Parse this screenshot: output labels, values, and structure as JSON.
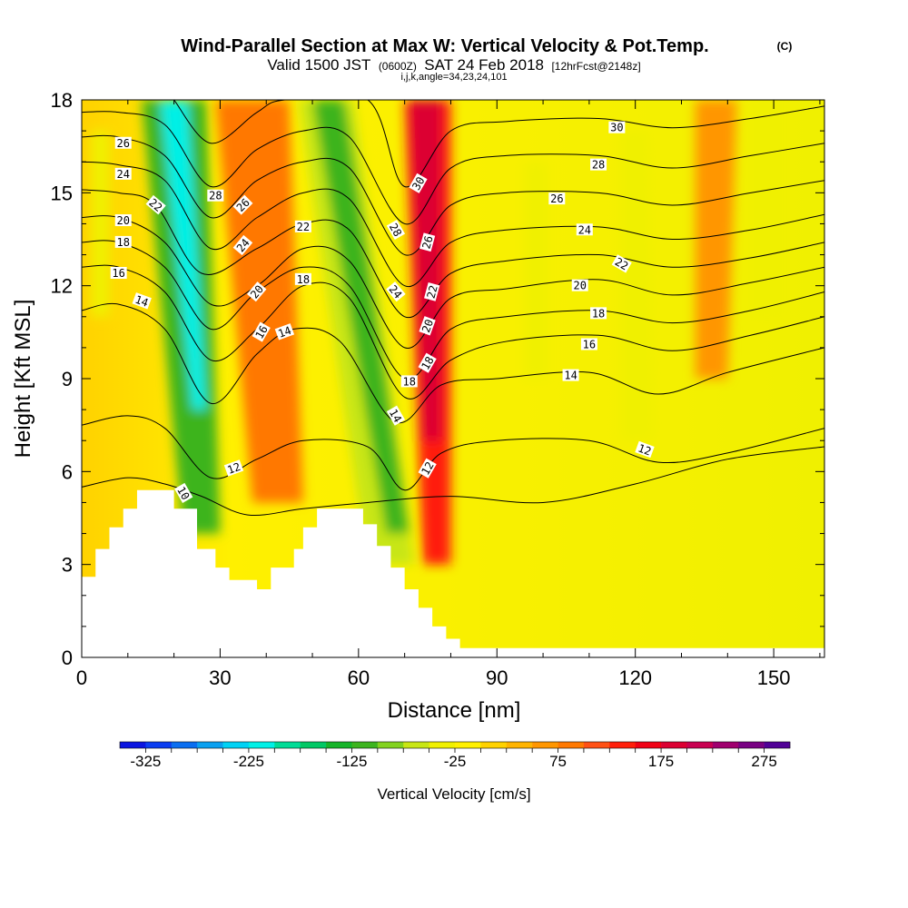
{
  "chart_data": {
    "type": "heatmap",
    "title": "Wind-Parallel Section at Max W: Vertical Velocity & Pot.Temp.",
    "title_mark": "(C)",
    "subtitle_parts": [
      "Valid 1500 JST",
      "(0600Z)",
      "SAT 24 Feb 2018",
      "[12hrFcst@2148z]"
    ],
    "subsubtitle": "i,j,k,angle=34,23,24,101",
    "xlabel": "Distance [nm]",
    "ylabel": "Height [Kft MSL]",
    "xlim": [
      0,
      161
    ],
    "ylim": [
      0,
      18
    ],
    "x_ticks": [
      "0",
      "30",
      "60",
      "90",
      "120",
      "150"
    ],
    "y_ticks": [
      "0",
      "3",
      "6",
      "9",
      "12",
      "15",
      "18"
    ],
    "colorbar": {
      "label": "Vertical Velocity [cm/s]",
      "ticks": [
        "-325",
        "-225",
        "-125",
        "-25",
        "75",
        "175",
        "275"
      ],
      "colors": [
        "#0a14e0",
        "#0a3cf0",
        "#0a6ef0",
        "#0aa0f0",
        "#00d2f5",
        "#00f0e6",
        "#00dc96",
        "#00c864",
        "#14b428",
        "#3cb41e",
        "#82d21e",
        "#c8e614",
        "#f0f000",
        "#fff000",
        "#ffd200",
        "#ffb400",
        "#ff9600",
        "#ff7800",
        "#ff5014",
        "#ff1e0a",
        "#f00014",
        "#dc0032",
        "#c80050",
        "#a0006e",
        "#780082",
        "#500096"
      ]
    },
    "shading_bands": [
      {
        "x0": 13,
        "x1": 27,
        "ytop": 18,
        "x0_bot": 22,
        "x1_bot": 30,
        "ybot": 4,
        "w": -125
      },
      {
        "x0": 17,
        "x1": 23,
        "ytop": 18,
        "x0_bot": 24,
        "x1_bot": 27,
        "ybot": 8,
        "w": -225
      },
      {
        "x0": 29,
        "x1": 45,
        "ytop": 18,
        "x0_bot": 37,
        "x1_bot": 48,
        "ybot": 5,
        "w": 75
      },
      {
        "x0": 47,
        "x1": 59,
        "ytop": 18,
        "x0_bot": 62,
        "x1_bot": 72,
        "ybot": 3,
        "w": -75
      },
      {
        "x0": 50,
        "x1": 57,
        "ytop": 18,
        "x0_bot": 66,
        "x1_bot": 71,
        "ybot": 4,
        "w": -125
      },
      {
        "x0": 70,
        "x1": 80,
        "ytop": 18,
        "x0_bot": 74,
        "x1_bot": 80,
        "ybot": 3,
        "w": 125
      },
      {
        "x0": 71,
        "x1": 78,
        "ytop": 18,
        "x0_bot": 74,
        "x1_bot": 78,
        "ybot": 7,
        "w": 175
      },
      {
        "x0": 96,
        "x1": 101,
        "ytop": 16,
        "x0_bot": 96,
        "x1_bot": 101,
        "ybot": 9,
        "w": -40
      },
      {
        "x0": 117,
        "x1": 123,
        "ytop": 17,
        "x0_bot": 117,
        "x1_bot": 124,
        "ybot": 7,
        "w": -40
      },
      {
        "x0": 133,
        "x1": 142,
        "ytop": 18,
        "x0_bot": 133,
        "x1_bot": 140,
        "ybot": 9,
        "w": 60
      },
      {
        "x0": 145,
        "x1": 152,
        "ytop": 18,
        "x0_bot": 145,
        "x1_bot": 152,
        "ybot": 11,
        "w": -40
      },
      {
        "x0": 2,
        "x1": 6,
        "ytop": 17,
        "x0_bot": 2,
        "x1_bot": 6,
        "ybot": 11,
        "w": -40
      }
    ],
    "terrain": [
      [
        0,
        2.6
      ],
      [
        3,
        2.6
      ],
      [
        3,
        3.5
      ],
      [
        6,
        3.5
      ],
      [
        6,
        4.2
      ],
      [
        9,
        4.2
      ],
      [
        9,
        4.8
      ],
      [
        12,
        4.8
      ],
      [
        12,
        5.4
      ],
      [
        20,
        5.4
      ],
      [
        20,
        4.8
      ],
      [
        25,
        4.8
      ],
      [
        25,
        3.5
      ],
      [
        29,
        3.5
      ],
      [
        29,
        2.9
      ],
      [
        32,
        2.9
      ],
      [
        32,
        2.5
      ],
      [
        38,
        2.5
      ],
      [
        38,
        2.2
      ],
      [
        41,
        2.2
      ],
      [
        41,
        2.9
      ],
      [
        46,
        2.9
      ],
      [
        46,
        3.5
      ],
      [
        48,
        3.5
      ],
      [
        48,
        4.2
      ],
      [
        51,
        4.2
      ],
      [
        51,
        4.8
      ],
      [
        61,
        4.8
      ],
      [
        61,
        4.3
      ],
      [
        64,
        4.3
      ],
      [
        64,
        3.6
      ],
      [
        67,
        3.6
      ],
      [
        67,
        2.9
      ],
      [
        70,
        2.9
      ],
      [
        70,
        2.2
      ],
      [
        73,
        2.2
      ],
      [
        73,
        1.6
      ],
      [
        76,
        1.6
      ],
      [
        76,
        1.0
      ],
      [
        79,
        1.0
      ],
      [
        79,
        0.6
      ],
      [
        82,
        0.6
      ],
      [
        82,
        0.3
      ],
      [
        161,
        0.3
      ],
      [
        161,
        0
      ]
    ],
    "theta_lines": [
      {
        "v": 10,
        "pts": [
          [
            0,
            5.5
          ],
          [
            10,
            5.8
          ],
          [
            18,
            5.6
          ],
          [
            26,
            5.2
          ],
          [
            36,
            4.6
          ],
          [
            48,
            4.8
          ],
          [
            62,
            5.0
          ],
          [
            80,
            5.2
          ],
          [
            100,
            5.0
          ],
          [
            120,
            5.6
          ],
          [
            140,
            6.4
          ],
          [
            161,
            6.8
          ]
        ]
      },
      {
        "v": 12,
        "pts": [
          [
            0,
            7.5
          ],
          [
            10,
            7.8
          ],
          [
            18,
            7.4
          ],
          [
            28,
            5.8
          ],
          [
            38,
            6.4
          ],
          [
            48,
            7.0
          ],
          [
            62,
            6.8
          ],
          [
            70,
            5.4
          ],
          [
            78,
            6.6
          ],
          [
            90,
            7.0
          ],
          [
            110,
            7.0
          ],
          [
            125,
            6.3
          ],
          [
            140,
            6.6
          ],
          [
            161,
            7.4
          ]
        ]
      },
      {
        "v": 14,
        "pts": [
          [
            0,
            11.2
          ],
          [
            8,
            11.4
          ],
          [
            18,
            10.6
          ],
          [
            28,
            8.2
          ],
          [
            38,
            9.8
          ],
          [
            46,
            10.6
          ],
          [
            56,
            10.2
          ],
          [
            68,
            7.6
          ],
          [
            78,
            8.8
          ],
          [
            90,
            9.0
          ],
          [
            110,
            9.2
          ],
          [
            125,
            8.5
          ],
          [
            140,
            9.2
          ],
          [
            161,
            10.0
          ]
        ]
      },
      {
        "v": 16,
        "pts": [
          [
            0,
            12.6
          ],
          [
            8,
            12.6
          ],
          [
            18,
            11.8
          ],
          [
            28,
            9.6
          ],
          [
            38,
            10.6
          ],
          [
            48,
            12.0
          ],
          [
            58,
            11.6
          ],
          [
            70,
            8.4
          ],
          [
            80,
            9.6
          ],
          [
            92,
            10.2
          ],
          [
            112,
            10.4
          ],
          [
            128,
            9.9
          ],
          [
            145,
            10.4
          ],
          [
            161,
            11.0
          ]
        ]
      },
      {
        "v": 18,
        "pts": [
          [
            0,
            13.4
          ],
          [
            8,
            13.4
          ],
          [
            18,
            12.6
          ],
          [
            28,
            10.6
          ],
          [
            38,
            11.8
          ],
          [
            48,
            12.6
          ],
          [
            58,
            12.0
          ],
          [
            70,
            9.0
          ],
          [
            80,
            10.6
          ],
          [
            92,
            11.0
          ],
          [
            112,
            11.2
          ],
          [
            128,
            10.8
          ],
          [
            145,
            11.2
          ],
          [
            161,
            11.8
          ]
        ]
      },
      {
        "v": 20,
        "pts": [
          [
            0,
            14.2
          ],
          [
            8,
            14.2
          ],
          [
            18,
            13.4
          ],
          [
            28,
            11.4
          ],
          [
            38,
            12.0
          ],
          [
            48,
            13.2
          ],
          [
            58,
            12.8
          ],
          [
            70,
            10.0
          ],
          [
            80,
            11.6
          ],
          [
            92,
            11.9
          ],
          [
            112,
            12.2
          ],
          [
            128,
            11.7
          ],
          [
            145,
            12.1
          ],
          [
            161,
            12.6
          ]
        ]
      },
      {
        "v": 22,
        "pts": [
          [
            0,
            15.1
          ],
          [
            8,
            15.0
          ],
          [
            16,
            14.6
          ],
          [
            26,
            12.4
          ],
          [
            38,
            13.2
          ],
          [
            48,
            14.0
          ],
          [
            58,
            13.8
          ],
          [
            70,
            11.0
          ],
          [
            80,
            12.4
          ],
          [
            92,
            12.8
          ],
          [
            112,
            13.0
          ],
          [
            128,
            12.6
          ],
          [
            145,
            12.9
          ],
          [
            161,
            13.4
          ]
        ]
      },
      {
        "v": 24,
        "pts": [
          [
            0,
            16.0
          ],
          [
            8,
            15.9
          ],
          [
            18,
            15.4
          ],
          [
            28,
            13.2
          ],
          [
            38,
            14.2
          ],
          [
            48,
            15.0
          ],
          [
            58,
            14.8
          ],
          [
            70,
            12.0
          ],
          [
            80,
            13.4
          ],
          [
            92,
            13.8
          ],
          [
            112,
            13.9
          ],
          [
            128,
            13.5
          ],
          [
            145,
            13.8
          ],
          [
            161,
            14.3
          ]
        ]
      },
      {
        "v": 26,
        "pts": [
          [
            0,
            16.8
          ],
          [
            8,
            16.8
          ],
          [
            18,
            16.2
          ],
          [
            28,
            14.2
          ],
          [
            38,
            15.4
          ],
          [
            48,
            16.0
          ],
          [
            58,
            15.8
          ],
          [
            70,
            13.0
          ],
          [
            80,
            14.6
          ],
          [
            92,
            15.0
          ],
          [
            112,
            15.0
          ],
          [
            128,
            14.6
          ],
          [
            145,
            15.0
          ],
          [
            161,
            15.4
          ]
        ]
      },
      {
        "v": 28,
        "pts": [
          [
            0,
            17.6
          ],
          [
            8,
            17.6
          ],
          [
            18,
            17.2
          ],
          [
            28,
            15.2
          ],
          [
            38,
            16.4
          ],
          [
            48,
            17.0
          ],
          [
            58,
            16.8
          ],
          [
            70,
            14.0
          ],
          [
            80,
            15.8
          ],
          [
            92,
            16.2
          ],
          [
            112,
            16.2
          ],
          [
            128,
            15.8
          ],
          [
            145,
            16.2
          ],
          [
            161,
            16.6
          ]
        ]
      },
      {
        "v": 30,
        "pts": [
          [
            20,
            18.0
          ],
          [
            28,
            16.6
          ],
          [
            38,
            17.6
          ],
          [
            44,
            18.0
          ],
          [
            62,
            18.0
          ],
          [
            70,
            15.2
          ],
          [
            80,
            17.0
          ],
          [
            92,
            17.3
          ],
          [
            112,
            17.4
          ],
          [
            128,
            17.1
          ],
          [
            145,
            17.4
          ],
          [
            161,
            17.8
          ]
        ]
      }
    ],
    "theta_labels": [
      {
        "text": "10",
        "x": 22,
        "y": 5.3,
        "rot": 60
      },
      {
        "text": "12",
        "x": 33,
        "y": 6.1,
        "rot": -20
      },
      {
        "text": "12",
        "x": 75,
        "y": 6.1,
        "rot": -60
      },
      {
        "text": "12",
        "x": 122,
        "y": 6.7,
        "rot": 20
      },
      {
        "text": "14",
        "x": 44,
        "y": 10.5,
        "rot": -20
      },
      {
        "text": "14",
        "x": 68,
        "y": 7.8,
        "rot": 60
      },
      {
        "text": "14",
        "x": 106,
        "y": 9.1,
        "rot": 0
      },
      {
        "text": "14",
        "x": 13,
        "y": 11.5,
        "rot": 20
      },
      {
        "text": "16",
        "x": 8,
        "y": 12.4,
        "rot": 0
      },
      {
        "text": "16",
        "x": 39,
        "y": 10.5,
        "rot": -60
      },
      {
        "text": "16",
        "x": 110,
        "y": 10.1,
        "rot": 0
      },
      {
        "text": "18",
        "x": 9,
        "y": 13.4,
        "rot": 0
      },
      {
        "text": "18",
        "x": 48,
        "y": 12.2,
        "rot": 0
      },
      {
        "text": "18",
        "x": 71,
        "y": 8.9,
        "rot": 0
      },
      {
        "text": "18",
        "x": 75,
        "y": 9.5,
        "rot": -60
      },
      {
        "text": "18",
        "x": 112,
        "y": 11.1,
        "rot": 0
      },
      {
        "text": "20",
        "x": 9,
        "y": 14.1,
        "rot": 0
      },
      {
        "text": "20",
        "x": 38,
        "y": 11.8,
        "rot": -50
      },
      {
        "text": "20",
        "x": 75,
        "y": 10.7,
        "rot": -70
      },
      {
        "text": "20",
        "x": 108,
        "y": 12.0,
        "rot": 0
      },
      {
        "text": "22",
        "x": 16,
        "y": 14.6,
        "rot": 40
      },
      {
        "text": "22",
        "x": 48,
        "y": 13.9,
        "rot": 0
      },
      {
        "text": "22",
        "x": 76,
        "y": 11.8,
        "rot": -75
      },
      {
        "text": "22",
        "x": 117,
        "y": 12.7,
        "rot": 30
      },
      {
        "text": "24",
        "x": 9,
        "y": 15.6,
        "rot": 0
      },
      {
        "text": "24",
        "x": 35,
        "y": 13.3,
        "rot": -50
      },
      {
        "text": "24",
        "x": 68,
        "y": 11.8,
        "rot": 50
      },
      {
        "text": "24",
        "x": 109,
        "y": 13.8,
        "rot": 0
      },
      {
        "text": "26",
        "x": 9,
        "y": 16.6,
        "rot": 0
      },
      {
        "text": "26",
        "x": 35,
        "y": 14.6,
        "rot": -45
      },
      {
        "text": "26",
        "x": 75,
        "y": 13.4,
        "rot": -75
      },
      {
        "text": "26",
        "x": 103,
        "y": 14.8,
        "rot": 0
      },
      {
        "text": "28",
        "x": 29,
        "y": 14.9,
        "rot": 0
      },
      {
        "text": "28",
        "x": 68,
        "y": 13.8,
        "rot": 60
      },
      {
        "text": "28",
        "x": 112,
        "y": 15.9,
        "rot": 0
      },
      {
        "text": "30",
        "x": 73,
        "y": 15.3,
        "rot": -60
      },
      {
        "text": "30",
        "x": 116,
        "y": 17.1,
        "rot": 0
      }
    ]
  }
}
